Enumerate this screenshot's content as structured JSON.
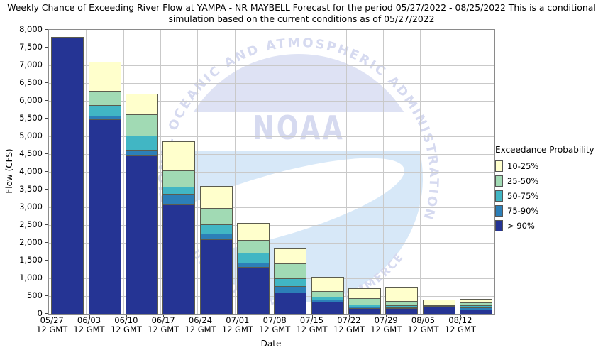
{
  "chart_data": {
    "type": "bar",
    "stacked": true,
    "title": "Weekly Chance of Exceeding River Flow at YAMPA - NR MAYBELL Forecast for the period 05/27/2022 - 08/25/2022 This is a conditional simulation based on the current conditions as of 05/27/2022",
    "xlabel": "Date",
    "ylabel": "Flow (CFS)",
    "ylim": [
      0,
      8000
    ],
    "ytick_step": 500,
    "grid": true,
    "legend": {
      "title": "Exceedance Probability",
      "position": "right"
    },
    "categories": [
      "05/27",
      "06/03",
      "06/10",
      "06/17",
      "06/24",
      "07/01",
      "07/08",
      "07/15",
      "07/22",
      "07/29",
      "08/05",
      "08/12"
    ],
    "category_sub_label": "12 GMT",
    "series_note": "values are stacked-segment top levels in CFS (flow exceeded with given probability)",
    "series": [
      {
        "name": "10-25%",
        "color": "#ffffcc",
        "tops_cfs": [
          7800,
          7100,
          6200,
          4850,
          3600,
          2550,
          1850,
          1030,
          720,
          750,
          400,
          410
        ]
      },
      {
        "name": "25-50%",
        "color": "#a1dab4",
        "tops_cfs": [
          7800,
          6300,
          5650,
          4050,
          3000,
          2100,
          1430,
          650,
          470,
          380,
          290,
          330
        ]
      },
      {
        "name": "50-75%",
        "color": "#41b6c4",
        "tops_cfs": [
          7800,
          5900,
          5050,
          3600,
          2550,
          1750,
          1010,
          500,
          290,
          270,
          270,
          260
        ]
      },
      {
        "name": "75-90%",
        "color": "#2c7fb8",
        "tops_cfs": [
          7800,
          5600,
          4650,
          3400,
          2300,
          1470,
          800,
          420,
          240,
          220,
          250,
          200
        ]
      },
      {
        "name": "> 90%",
        "color": "#253494",
        "tops_cfs": [
          7800,
          5500,
          4500,
          3100,
          2150,
          1350,
          630,
          370,
          210,
          200,
          240,
          150
        ]
      }
    ]
  },
  "watermark": {
    "arc_top": "NATIONAL OCEANIC AND ATMOSPHERIC ADMINISTRATION",
    "acronym": "NOAA",
    "arc_bottom": "U.S. DEPARTMENT OF COMMERCE"
  }
}
